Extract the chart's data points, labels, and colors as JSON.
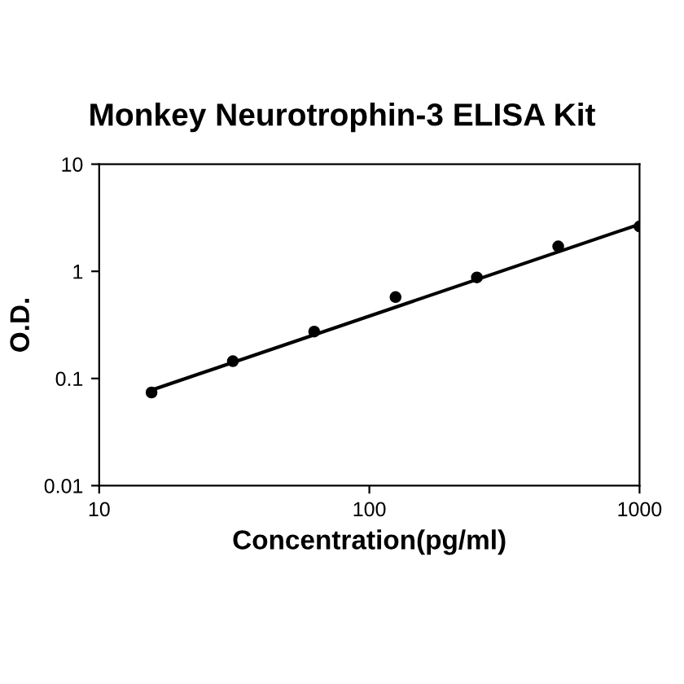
{
  "chart_data": {
    "type": "scatter",
    "title": "Monkey Neurotrophin-3 ELISA Kit",
    "xlabel": "Concentration(pg/ml)",
    "ylabel": "O.D.",
    "log": "xy",
    "xlim": [
      10,
      1000
    ],
    "xticks": [
      10,
      100,
      1000
    ],
    "ylim": [
      0.01,
      10
    ],
    "yticks": [
      0.01,
      0.1,
      1,
      10
    ],
    "grid": false,
    "legend": false,
    "series": [
      {
        "color": "#000000",
        "marker": "circle",
        "x": [
          15.625,
          31.25,
          62.5,
          125,
          250,
          500,
          1000
        ],
        "values": [
          0.074,
          0.145,
          0.274,
          0.575,
          0.877,
          1.71,
          2.62
        ]
      },
      {
        "type": "line",
        "color": "#000000",
        "marker": "none",
        "line_style": "solid",
        "x": [
          15.625,
          1000
        ],
        "values": [
          0.078,
          2.75
        ]
      }
    ]
  }
}
